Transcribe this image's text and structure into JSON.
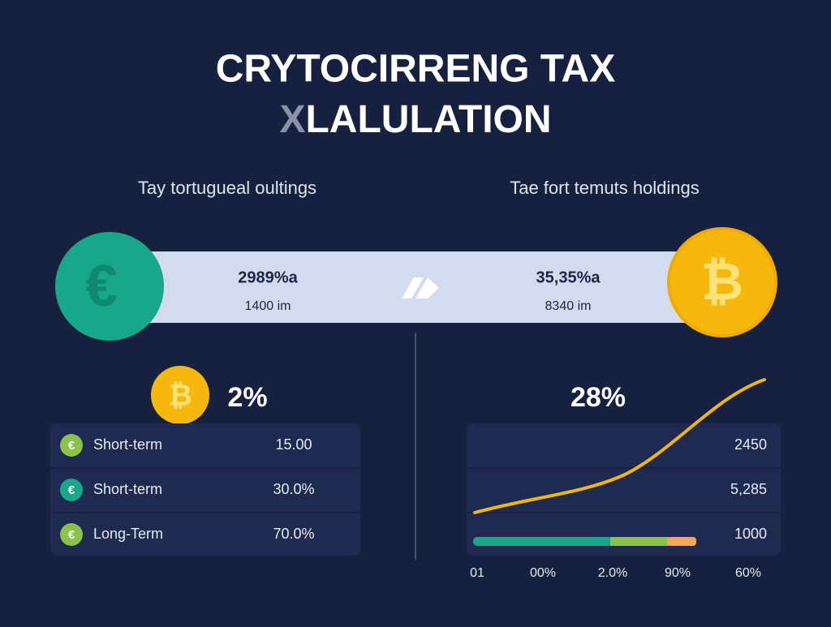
{
  "header": {
    "title_line1": "CRYTOCIRRENG TAX",
    "title_line2_prefix": "X",
    "title_line2": "LALULATION"
  },
  "headings": {
    "left": "Tay tortugueal oultings",
    "right": "Tae fort temuts holdings"
  },
  "banner": {
    "left_icon": "€",
    "left_value": "2989%a",
    "left_sub": "1400 im",
    "right_value": "35,35%a",
    "right_sub": "8340 im",
    "right_icon": "₿"
  },
  "left_panel": {
    "icon": "₿",
    "rate": "2%",
    "rows": [
      {
        "icon": "€",
        "label": "Short-term",
        "value": "15.00"
      },
      {
        "icon": "€",
        "label": "Short-term",
        "value": "30.0%"
      },
      {
        "icon": "€",
        "label": "Long-Term",
        "value": "70.0%"
      }
    ]
  },
  "right_panel": {
    "rate": "28%",
    "values": [
      "2450",
      "5,285",
      "1000"
    ],
    "axis_labels": [
      "01",
      "00%",
      "2.0%",
      "90%",
      "60%"
    ]
  }
}
